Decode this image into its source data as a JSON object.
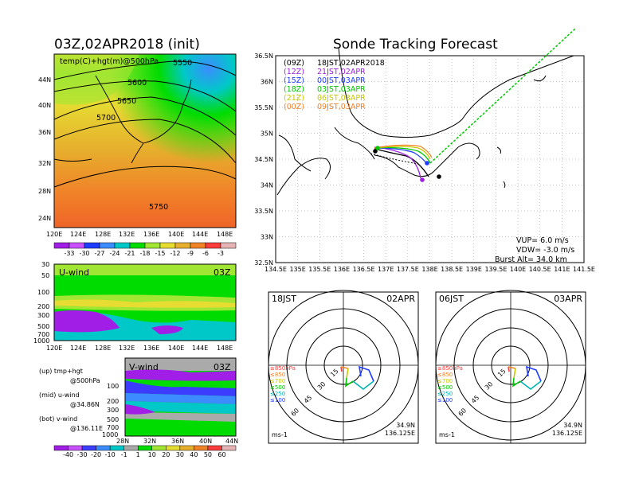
{
  "left_panel": {
    "title": "03Z,02APR2018 (init)",
    "map_label": "temp(C)+hgt(m)@500hPa",
    "contour_labels": [
      "5550",
      "5600",
      "5650",
      "5700",
      "5750"
    ],
    "lat_ticks": [
      "44N",
      "40N",
      "36N",
      "32N",
      "28N",
      "24N"
    ],
    "lon_ticks": [
      "120E",
      "124E",
      "128E",
      "132E",
      "136E",
      "140E",
      "144E",
      "148E"
    ],
    "temp_colorbar": [
      "-33",
      "-30",
      "-27",
      "-24",
      "-21",
      "-18",
      "-15",
      "-12",
      "-9",
      "-6",
      "-3"
    ],
    "temp_colors": [
      "#a01ee6",
      "#c850ff",
      "#1e3cff",
      "#3c8cff",
      "#00c8c8",
      "#00dc00",
      "#a0e632",
      "#e6dc32",
      "#e6af2d",
      "#f08228",
      "#fa3c3c",
      "#e6b4b4"
    ],
    "uwind_label": "U-wind",
    "uwind_time": "03Z",
    "pressure_ticks_u": [
      "30",
      "50",
      "100",
      "200",
      "300",
      "500",
      "700",
      "1000"
    ],
    "vwind_label": "V-wind",
    "vwind_time": "03Z",
    "pressure_ticks_v": [
      "100",
      "200",
      "300",
      "500",
      "700",
      "1000"
    ],
    "lat_ticks_v": [
      "28N",
      "32N",
      "36N",
      "40N",
      "44N"
    ],
    "wind_colorbar": [
      "-40",
      "-30",
      "-20",
      "-10",
      "-1",
      "1",
      "10",
      "20",
      "30",
      "40",
      "50",
      "60"
    ],
    "wind_colors": [
      "#a01ee6",
      "#c850ff",
      "#3c3cff",
      "#3c8cff",
      "#00c8c8",
      "#aaaaaa",
      "#00dc00",
      "#a0e632",
      "#e6dc32",
      "#e6af2d",
      "#f08228",
      "#fa3c3c",
      "#e6b4b4"
    ],
    "legend": {
      "up": "(up) tmp+hgt",
      "up2": "@500hPa",
      "mid": "(mid) u-wind",
      "mid2": "@34.86N",
      "bot": "(bot) v-wind",
      "bot2": "@136.11E"
    }
  },
  "right_panel": {
    "title": "Sonde Tracking Forecast",
    "runs": [
      {
        "code": "(09Z)",
        "label": "18JST,02APR2018",
        "color": "#000000"
      },
      {
        "code": "(12Z)",
        "label": "21JST,02APR",
        "color": "#a01ee6"
      },
      {
        "code": "(15Z)",
        "label": "00JST,03APR",
        "color": "#1e3cff"
      },
      {
        "code": "(18Z)",
        "label": "03JST,03APR",
        "color": "#00c800"
      },
      {
        "code": "(21Z)",
        "label": "06JST,03APR",
        "color": "#c8c800"
      },
      {
        "code": "(00Z)",
        "label": "09JST,03APR",
        "color": "#f08228"
      }
    ],
    "lat_ticks": [
      "36.5N",
      "36N",
      "35.5N",
      "35N",
      "34.5N",
      "34N",
      "33.5N",
      "33N",
      "32.5N"
    ],
    "lon_ticks": [
      "134.5E",
      "135E",
      "135.5E",
      "136E",
      "136.5E",
      "137E",
      "137.5E",
      "138E",
      "138.5E",
      "139E",
      "139.5E",
      "140E",
      "140.5E",
      "141E",
      "141.5E"
    ],
    "params": {
      "vup": "VUP=  6.0 m/s",
      "vdw": "VDW= -3.0 m/s",
      "burst": "Burst Alt=  34.0 km"
    }
  },
  "polar_left": {
    "time": "18JST",
    "date": "02APR",
    "ring_labels": [
      "15",
      "30",
      "45",
      "60"
    ],
    "levels": [
      "≥850hPa",
      "≤850",
      "≤700",
      "≤500",
      "≤250",
      "≤100"
    ],
    "level_colors": [
      "#fa3c3c",
      "#f08228",
      "#c8c800",
      "#00c800",
      "#00b4b4",
      "#1e3cff"
    ],
    "lat": "34.9N",
    "lon": "136.125E",
    "unit": "ms-1"
  },
  "polar_right": {
    "time": "06JST",
    "date": "03APR",
    "ring_labels": [
      "15",
      "30",
      "45",
      "60"
    ],
    "levels": [
      "≥850hPa",
      "≤850",
      "≤700",
      "≤500",
      "≤250",
      "≤100"
    ],
    "level_colors": [
      "#fa3c3c",
      "#f08228",
      "#c8c800",
      "#00c800",
      "#00b4b4",
      "#1e3cff"
    ],
    "lat": "34.9N",
    "lon": "136.125E",
    "unit": "ms-1"
  }
}
